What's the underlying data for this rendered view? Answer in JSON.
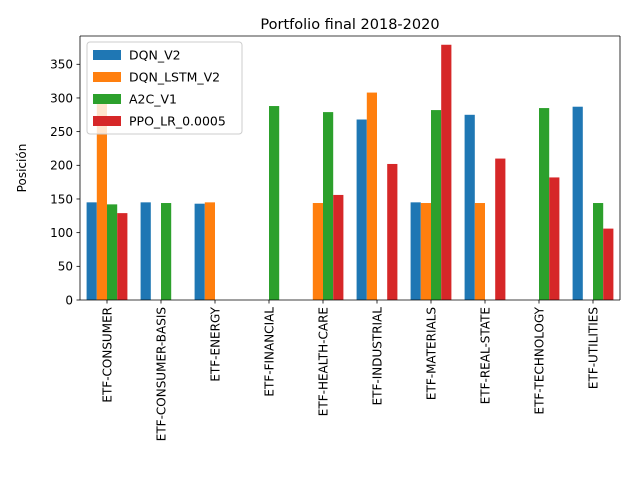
{
  "chart_data": {
    "type": "bar",
    "title": "Portfolio final 2018-2020",
    "xlabel": "",
    "ylabel": "Posición",
    "ylim": [
      0,
      392
    ],
    "yticks": [
      0,
      50,
      100,
      150,
      200,
      250,
      300,
      350
    ],
    "grid": false,
    "legend_position": "top-left",
    "categories": [
      "ETF-CONSUMER",
      "ETF-CONSUMER-BASIS",
      "ETF-ENERGY",
      "ETF-FINANCIAL",
      "ETF-HEALTH-CARE",
      "ETF-INDUSTRIAL",
      "ETF-MATERIALS",
      "ETF-REAL-STATE",
      "ETF-TECHNOLOGY",
      "ETF-UTILITIES"
    ],
    "series": [
      {
        "name": "DQN_V2",
        "color": "#1f77b4",
        "values": [
          145,
          145,
          143,
          0,
          0,
          268,
          145,
          275,
          0,
          287
        ]
      },
      {
        "name": "DQN_LSTM_V2",
        "color": "#ff7f0e",
        "values": [
          302,
          0,
          145,
          0,
          144,
          308,
          144,
          144,
          0,
          0
        ]
      },
      {
        "name": "A2C_V1",
        "color": "#2ca02c",
        "values": [
          142,
          144,
          0,
          288,
          279,
          0,
          282,
          0,
          285,
          144
        ]
      },
      {
        "name": "PPO_LR_0.0005",
        "color": "#d62728",
        "values": [
          129,
          0,
          0,
          0,
          156,
          202,
          379,
          210,
          182,
          106
        ]
      }
    ]
  }
}
